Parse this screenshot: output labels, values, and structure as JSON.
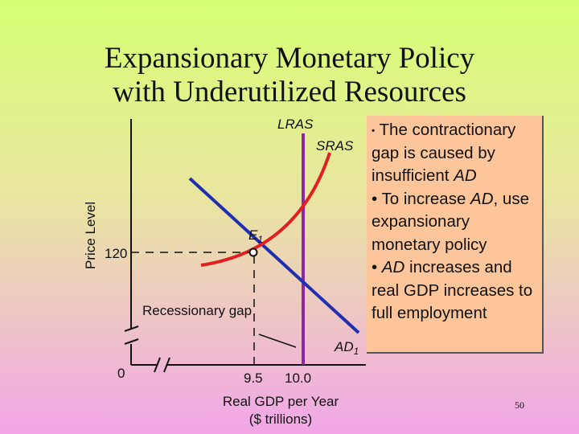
{
  "title": {
    "line1": "Expansionary Monetary Policy",
    "line2": "with Underutilized Resources"
  },
  "diagram": {
    "y_axis_label": "Price Level",
    "x_axis_label_line1": "Real GDP per Year",
    "x_axis_label_line2": "($ trillions)",
    "origin_label": "0",
    "price_tick": "120",
    "x_tick_1": "9.5",
    "x_tick_2": "10.0",
    "lras_label": "LRAS",
    "sras_label": "SRAS",
    "ad_label": "AD",
    "ad_subscript": "1",
    "equilibrium_label": "E",
    "equilibrium_subscript": "1",
    "gap_label": "Recessionary gap",
    "colors": {
      "lras": "#8b2a9e",
      "sras": "#e02020",
      "ad": "#1f2fb0",
      "box": "#fdc69a"
    }
  },
  "bullets": [
    {
      "prefix": "The contractionary gap is caused by insufficient ",
      "em": "AD",
      "suffix": ""
    },
    {
      "prefix": "To increase ",
      "em": "AD",
      "suffix": ", use expansionary monetary policy"
    },
    {
      "prefix": "",
      "em": "AD",
      "suffix": " increases and real GDP increases to full employment"
    }
  ],
  "page_number": "50"
}
